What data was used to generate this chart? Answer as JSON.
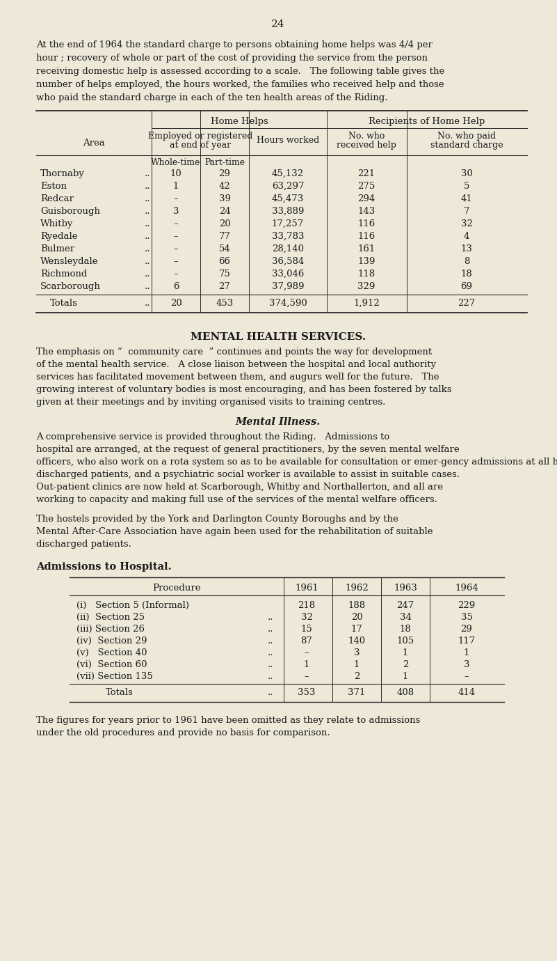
{
  "page_number": "24",
  "bg_color": "#ede8d8",
  "text_color": "#1a1a1a",
  "intro_lines": [
    "At the end of 1964 the standard charge to persons obtaining home helps was 4/4 per",
    "hour ; recovery of whole or part of the cost of providing the service from the person",
    "receiving domestic help is assessed according to a scale.   The following table gives the",
    "number of helps employed, the hours worked, the families who received help and those",
    "who paid the standard charge in each of the ten health areas of the Riding."
  ],
  "table1_header1": "Home Helps",
  "table1_header2": "Recipients of Home Help",
  "table1_area_col": "Area",
  "table1_rows": [
    {
      "area": "Thornaby",
      "wt": "10",
      "pt": "29",
      "hours": "45,132",
      "received": "221",
      "paid": "30"
    },
    {
      "area": "Eston",
      "wt": "1",
      "pt": "42",
      "hours": "63,297",
      "received": "275",
      "paid": "5"
    },
    {
      "area": "Redcar",
      "wt": "–",
      "pt": "39",
      "hours": "45,473",
      "received": "294",
      "paid": "41"
    },
    {
      "area": "Guisborough",
      "wt": "3",
      "pt": "24",
      "hours": "33,889",
      "received": "143",
      "paid": "7"
    },
    {
      "area": "Whitby",
      "wt": "–",
      "pt": "20",
      "hours": "17,257",
      "received": "116",
      "paid": "32"
    },
    {
      "area": "Ryedale",
      "wt": "–",
      "pt": "77",
      "hours": "33,783",
      "received": "116",
      "paid": "4"
    },
    {
      "area": "Bulmer",
      "wt": "–",
      "pt": "54",
      "hours": "28,140",
      "received": "161",
      "paid": "13"
    },
    {
      "area": "Wensleydale",
      "wt": "–",
      "pt": "66",
      "hours": "36,584",
      "received": "139",
      "paid": "8"
    },
    {
      "area": "Richmond",
      "wt": "–",
      "pt": "75",
      "hours": "33,046",
      "received": "118",
      "paid": "18"
    },
    {
      "area": "Scarborough",
      "wt": "6",
      "pt": "27",
      "hours": "37,989",
      "received": "329",
      "paid": "69"
    }
  ],
  "table1_totals": {
    "area": "Totals",
    "wt": "20",
    "pt": "453",
    "hours": "374,590",
    "received": "1,912",
    "paid": "227"
  },
  "mental_health_title": "MENTAL HEALTH SERVICES.",
  "mh_para1_lines": [
    "The emphasis on “  community care  ” continues and points the way for development",
    "of the mental health service.   A close liaison between the hospital and local authority",
    "services has facilitated movement between them, and augurs well for the future.   The",
    "growing interest of voluntary bodies is most encouraging, and has been fostered by talks",
    "given at their meetings and by inviting organised visits to training centres."
  ],
  "mental_illness_title": "Mental Illness.",
  "mi_para_lines": [
    "A comprehensive service is provided throughout the Riding.   Admissions to",
    "hospital are arranged, at the request of general practitioners, by the seven mental welfare",
    "officers, who also work on a rota system so as to be available for consultation or emer­gency admissions at all hours.   The mental welfare officers also provide after-care for",
    "discharged patients, and a psychiatric social worker is available to assist in suitable cases.",
    "Out-patient clinics are now held at Scarborough, Whitby and Northallerton, and all are",
    "working to capacity and making full use of the services of the mental welfare officers."
  ],
  "hostels_lines": [
    "The hostels provided by the York and Darlington County Boroughs and by the",
    "Mental After-Care Association have again been used for the rehabilitation of suitable",
    "discharged patients."
  ],
  "admissions_title": "Admissions to Hospital.",
  "table2_rows": [
    {
      "proc": "(i)   Section 5 (Informal)",
      "dots": false,
      "y1961": "218",
      "y1962": "188",
      "y1963": "247",
      "y1964": "229"
    },
    {
      "proc": "(ii)  Section 25",
      "dots": true,
      "y1961": "32",
      "y1962": "20",
      "y1963": "34",
      "y1964": "35"
    },
    {
      "proc": "(iii) Section 26",
      "dots": true,
      "y1961": "15",
      "y1962": "17",
      "y1963": "18",
      "y1964": "29"
    },
    {
      "proc": "(iv)  Section 29",
      "dots": true,
      "y1961": "87",
      "y1962": "140",
      "y1963": "105",
      "y1964": "117"
    },
    {
      "proc": "(v)   Section 40",
      "dots": true,
      "y1961": "–",
      "y1962": "3",
      "y1963": "1",
      "y1964": "1"
    },
    {
      "proc": "(vi)  Section 60",
      "dots": true,
      "y1961": "1",
      "y1962": "1",
      "y1963": "2",
      "y1964": "3"
    },
    {
      "proc": "(vii) Section 135",
      "dots": true,
      "y1961": "–",
      "y1962": "2",
      "y1963": "1",
      "y1964": "–"
    }
  ],
  "table2_totals": {
    "proc": "Totals",
    "y1961": "353",
    "y1962": "371",
    "y1963": "408",
    "y1964": "414"
  },
  "footer_lines": [
    "The figures for years prior to 1961 have been omitted as they relate to admissions",
    "under the old procedures and provide no basis for comparison."
  ]
}
